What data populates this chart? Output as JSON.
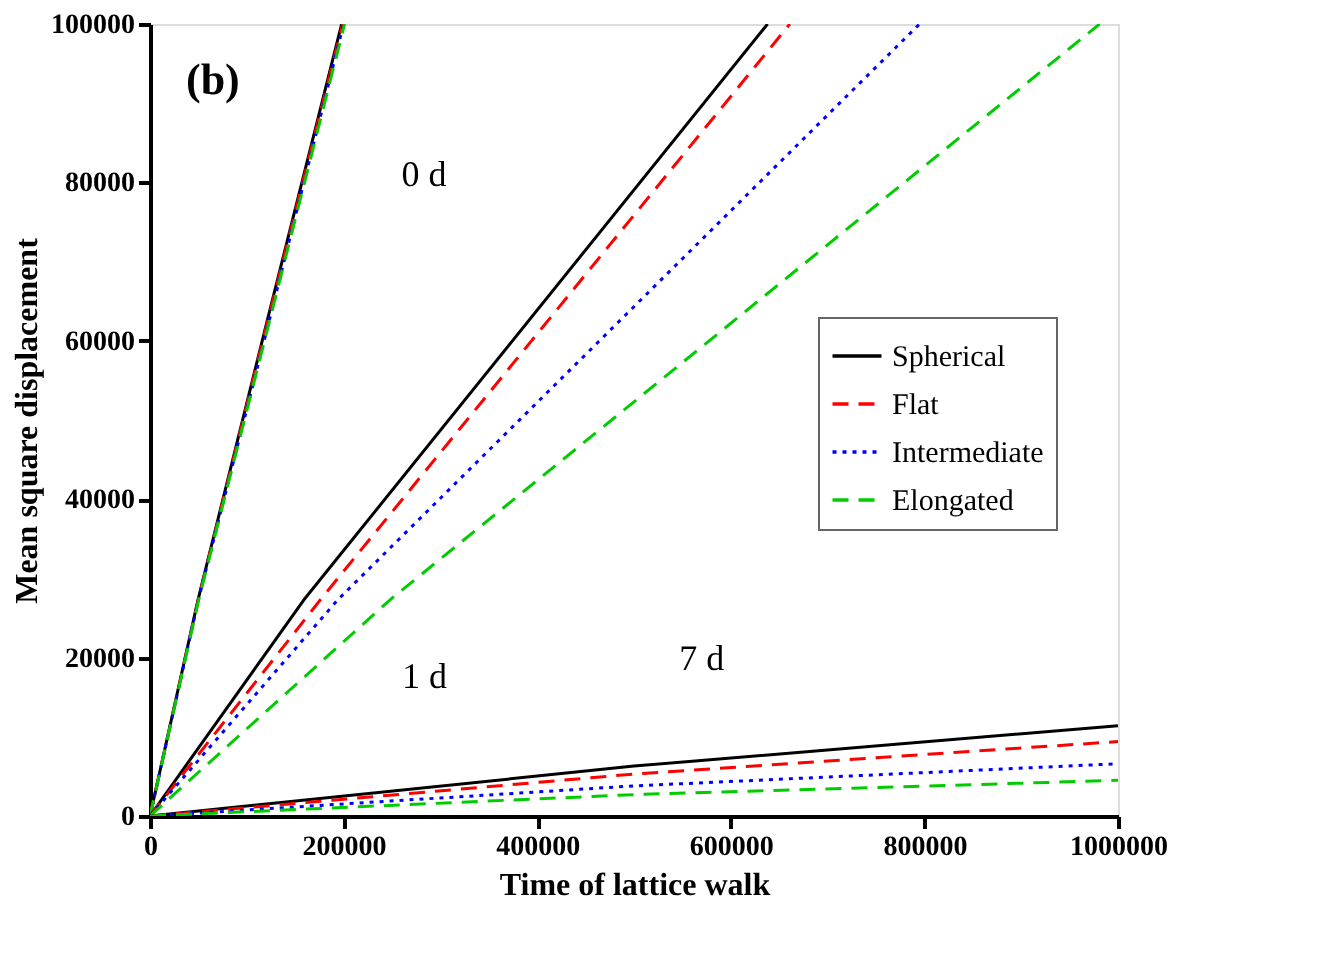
{
  "chart_data": {
    "type": "line",
    "xlabel": "Time of lattice walk",
    "ylabel": "Mean square displacement",
    "xlim": [
      0,
      1000000
    ],
    "xticks": [
      0,
      200000,
      400000,
      600000,
      800000,
      1000000
    ],
    "ylim": [
      0,
      100000
    ],
    "yticks": [
      0,
      20000,
      40000,
      60000,
      80000,
      100000
    ],
    "grid": false,
    "legend": "right",
    "marker": "none",
    "annotations": [
      "(b)",
      {
        "text": "0 d",
        "x": 169000,
        "y": 80800
      },
      "1 d",
      {
        "text": "7 d",
        "x": 570000,
        "y": 8300
      }
    ],
    "series": [
      {
        "name": "Spherical",
        "color": "#000000",
        "line_style": "solid",
        "x": [
          0,
          49600,
          120000,
          198000
        ],
        "values": [
          0,
          27300,
          62000,
          100000
        ]
      },
      {
        "name": "Flat",
        "color": "#ff0000",
        "line_style": "dashed",
        "x": [
          0,
          49800,
          120000,
          199000
        ],
        "values": [
          0,
          27300,
          61700,
          100000
        ]
      },
      {
        "name": "Intermediate",
        "color": "#0000ff",
        "line_style": "dotted",
        "x": [
          0,
          50000,
          121000,
          200000
        ],
        "values": [
          0,
          27300,
          61500,
          100000
        ]
      },
      {
        "name": "Elongated",
        "color": "#00cc00",
        "line_style": "dashed",
        "x": [
          0,
          50300,
          121000,
          201000
        ],
        "values": [
          0,
          27300,
          61300,
          100000
        ]
      },
      {
        "color": "#000000",
        "line_style": "solid",
        "x": [
          0,
          159000,
          638000
        ],
        "values": [
          0,
          27300,
          100000
        ]
      },
      {
        "color": "#ff0000",
        "line_style": "dashed",
        "x": [
          0,
          176000,
          661000
        ],
        "values": [
          0,
          27300,
          100000
        ]
      },
      {
        "color": "#0000ff",
        "line_style": "dotted",
        "x": [
          0,
          194000,
          795000
        ],
        "values": [
          0,
          27300,
          100000
        ]
      },
      {
        "color": "#00cc00",
        "line_style": "dashed",
        "x": [
          0,
          248000,
          981000
        ],
        "values": [
          0,
          27300,
          100000
        ]
      },
      {
        "color": "#000000",
        "line_style": "solid",
        "x": [
          0,
          500000,
          1000000
        ],
        "values": [
          0,
          6300,
          11400
        ]
      },
      {
        "color": "#ff0000",
        "line_style": "dashed",
        "x": [
          0,
          500000,
          1000000
        ],
        "values": [
          0,
          5300,
          9400
        ]
      },
      {
        "color": "#0000ff",
        "line_style": "dotted",
        "x": [
          0,
          500000,
          1000000
        ],
        "values": [
          0,
          3800,
          6600
        ]
      },
      {
        "color": "#00cc00",
        "line_style": "dashed",
        "x": [
          0,
          500000,
          1000000
        ],
        "values": [
          0,
          2700,
          4500
        ]
      }
    ]
  }
}
